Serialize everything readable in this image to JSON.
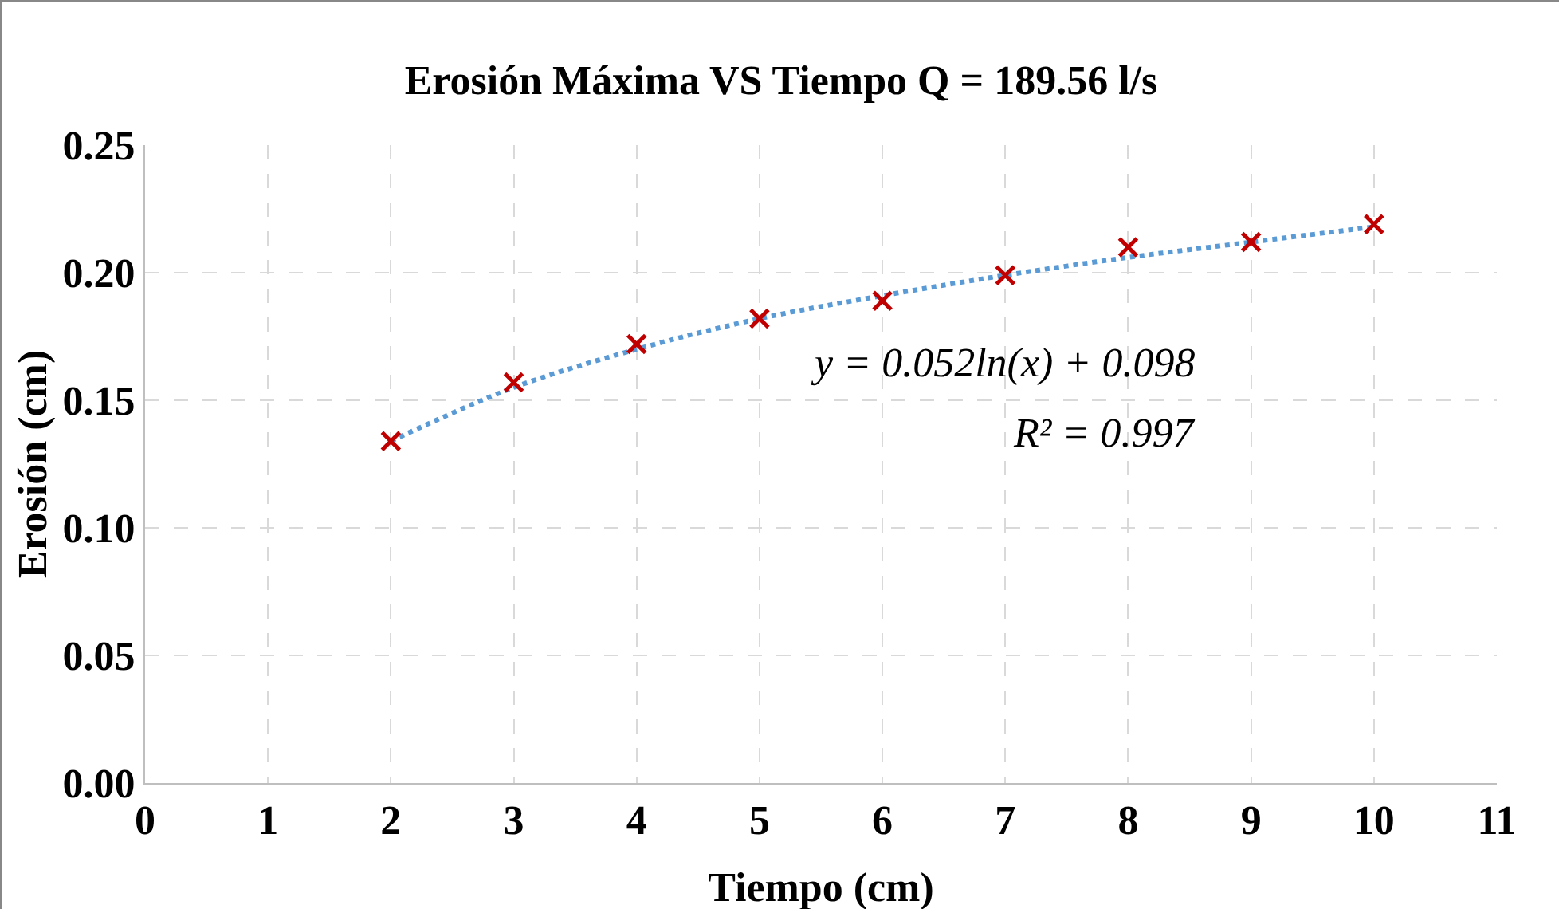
{
  "chart_data": {
    "type": "scatter",
    "title": "Erosión Máxima VS Tiempo Q = 189.56 l/s",
    "xlabel": "Tiempo (cm)",
    "ylabel": "Erosión (cm)",
    "series": [
      {
        "color": "#c00000",
        "marker": "cross",
        "x": [
          2,
          3,
          4,
          5,
          6,
          7,
          8,
          9,
          10
        ],
        "values": [
          0.134,
          0.157,
          0.172,
          0.182,
          0.189,
          0.199,
          0.21,
          0.212,
          0.219
        ]
      },
      {
        "type": "line",
        "color": "#5b9bd5",
        "line_style": "dotted",
        "marker": "none",
        "x": [
          2,
          3,
          4,
          5,
          6,
          7,
          8,
          9,
          10
        ],
        "values": [
          0.134,
          0.155,
          0.17,
          0.182,
          0.191,
          0.199,
          0.206,
          0.212,
          0.218
        ]
      }
    ],
    "annotations": [
      "y = 0.052ln(x) + 0.098",
      "R² = 0.997"
    ],
    "xlim": [
      0,
      11
    ],
    "xticks": [
      0,
      1,
      2,
      3,
      4,
      5,
      6,
      7,
      8,
      9,
      10,
      11
    ],
    "ylim": [
      0,
      0.25
    ],
    "yticks": [
      {
        "value": 0,
        "label": "0.00"
      },
      {
        "value": 0.05,
        "label": "0.05"
      },
      {
        "value": 0.1,
        "label": "0.10"
      },
      {
        "value": 0.15,
        "label": "0.15"
      },
      {
        "value": 0.2,
        "label": "0.20"
      },
      {
        "value": 0.25,
        "label": "0.25"
      }
    ],
    "grid": true,
    "legend": false
  }
}
